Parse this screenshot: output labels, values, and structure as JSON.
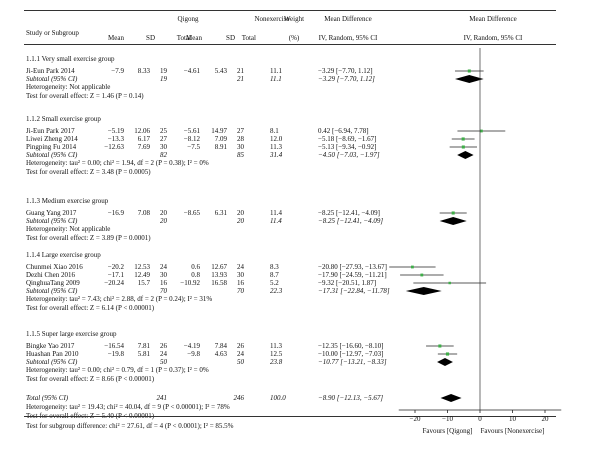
{
  "header": {
    "study": "Study or Subgroup",
    "qigong": "Qigong",
    "nonexercise": "Nonexercise",
    "weight": "Weight",
    "weight_unit": "(%)",
    "md_title": "Mean Difference",
    "md_method": "IV, Random, 95% CI",
    "plot_title": "Mean Difference",
    "plot_method": "IV, Random, 95% CI",
    "mean": "Mean",
    "sd": "SD",
    "total": "Total"
  },
  "groups": [
    {
      "title": "1.1.1 Very small exercise group",
      "studies": [
        {
          "name": "Ji-Eun Park 2014",
          "q_mean": "−7.9",
          "q_sd": "8.33",
          "q_n": "19",
          "n_mean": "−4.61",
          "n_sd": "5.43",
          "n_n": "21",
          "weight": "11.1",
          "ci": "−3.29 [−7.70, 1.12]",
          "md": -3.29,
          "lo": -7.7,
          "hi": 1.12
        }
      ],
      "subtotal": {
        "label": "Subtotal (95% CI)",
        "q_n": "19",
        "n_n": "21",
        "weight": "11.1",
        "ci": "−3.29 [−7.70, 1.12]",
        "md": -3.29,
        "lo": -7.7,
        "hi": 1.12
      },
      "heterogeneity": "Heterogeneity: Not applicable",
      "overall": "Test for overall effect: Z = 1.46 (P = 0.14)"
    },
    {
      "title": "1.1.2 Small exercise group",
      "studies": [
        {
          "name": "Ji-Eun Park 2017",
          "q_mean": "−5.19",
          "q_sd": "12.06",
          "q_n": "25",
          "n_mean": "−5.61",
          "n_sd": "14.97",
          "n_n": "27",
          "weight": "8.1",
          "ci": "0.42 [−6.94, 7.78]",
          "md": 0.42,
          "lo": -6.94,
          "hi": 7.78
        },
        {
          "name": "Liwei Zheng 2014",
          "q_mean": "−13.3",
          "q_sd": "6.17",
          "q_n": "27",
          "n_mean": "−8.12",
          "n_sd": "7.09",
          "n_n": "28",
          "weight": "12.0",
          "ci": "−5.18 [−8.69, −1.67]",
          "md": -5.18,
          "lo": -8.69,
          "hi": -1.67
        },
        {
          "name": "Pingping Fu 2014",
          "q_mean": "−12.63",
          "q_sd": "7.69",
          "q_n": "30",
          "n_mean": "−7.5",
          "n_sd": "8.91",
          "n_n": "30",
          "weight": "11.3",
          "ci": "−5.13 [−9.34, −0.92]",
          "md": -5.13,
          "lo": -9.34,
          "hi": -0.92
        }
      ],
      "subtotal": {
        "label": "Subtotal (95% CI)",
        "q_n": "82",
        "n_n": "85",
        "weight": "31.4",
        "ci": "−4.50 [−7.03, −1.97]",
        "md": -4.5,
        "lo": -7.03,
        "hi": -1.97
      },
      "heterogeneity": "Heterogeneity: tau² = 0.00; chi² = 1.94, df = 2 (P = 0.38); I² = 0%",
      "overall": "Test for overall effect: Z = 3.48 (P = 0.0005)"
    },
    {
      "title": "1.1.3 Medium exercise group",
      "studies": [
        {
          "name": "Guang Yang 2017",
          "q_mean": "−16.9",
          "q_sd": "7.08",
          "q_n": "20",
          "n_mean": "−8.65",
          "n_sd": "6.31",
          "n_n": "20",
          "weight": "11.4",
          "ci": "−8.25 [−12.41, −4.09]",
          "md": -8.25,
          "lo": -12.41,
          "hi": -4.09
        }
      ],
      "subtotal": {
        "label": "Subtotal (95% CI)",
        "q_n": "20",
        "n_n": "20",
        "weight": "11.4",
        "ci": "−8.25 [−12.41, −4.09]",
        "md": -8.25,
        "lo": -12.41,
        "hi": -4.09
      },
      "heterogeneity": "Heterogeneity: Not applicable",
      "overall": "Test for overall effect: Z = 3.89 (P = 0.0001)"
    },
    {
      "title": "1.1.4 Large exercise group",
      "studies": [
        {
          "name": "Chunmei Xiao 2016",
          "q_mean": "−20.2",
          "q_sd": "12.53",
          "q_n": "24",
          "n_mean": "0.6",
          "n_sd": "12.67",
          "n_n": "24",
          "weight": "8.3",
          "ci": "−20.80 [−27.93, −13.67]",
          "md": -20.8,
          "lo": -27.93,
          "hi": -13.67
        },
        {
          "name": "Dezhi Chen 2016",
          "q_mean": "−17.1",
          "q_sd": "12.49",
          "q_n": "30",
          "n_mean": "0.8",
          "n_sd": "13.93",
          "n_n": "30",
          "weight": "8.7",
          "ci": "−17.90 [−24.59, −11.21]",
          "md": -17.9,
          "lo": -24.59,
          "hi": -11.21
        },
        {
          "name": "QinghuaTang 2009",
          "q_mean": "−20.24",
          "q_sd": "15.7",
          "q_n": "16",
          "n_mean": "−10.92",
          "n_sd": "16.58",
          "n_n": "16",
          "weight": "5.2",
          "ci": "−9.32 [−20.51, 1.87]",
          "md": -9.32,
          "lo": -20.51,
          "hi": 1.87
        }
      ],
      "subtotal": {
        "label": "Subtotal (95% CI)",
        "q_n": "70",
        "n_n": "70",
        "weight": "22.3",
        "ci": "−17.31 [−22.84, −11.78]",
        "md": -17.31,
        "lo": -22.84,
        "hi": -11.78
      },
      "heterogeneity": "Heterogeneity: tau² = 7.43; chi² = 2.88, df = 2 (P = 0.24); I² = 31%",
      "overall": "Test for overall effect: Z = 6.14 (P < 0.00001)"
    },
    {
      "title": "1.1.5 Super large exercise group",
      "studies": [
        {
          "name": "Bingke Yao 2017",
          "q_mean": "−16.54",
          "q_sd": "7.81",
          "q_n": "26",
          "n_mean": "−4.19",
          "n_sd": "7.84",
          "n_n": "26",
          "weight": "11.3",
          "ci": "−12.35 [−16.60, −8.10]",
          "md": -12.35,
          "lo": -16.6,
          "hi": -8.1
        },
        {
          "name": "Huashan Pan 2010",
          "q_mean": "−19.8",
          "q_sd": "5.81",
          "q_n": "24",
          "n_mean": "−9.8",
          "n_sd": "4.63",
          "n_n": "24",
          "weight": "12.5",
          "ci": "−10.00 [−12.97, −7.03]",
          "md": -10.0,
          "lo": -12.97,
          "hi": -7.03
        }
      ],
      "subtotal": {
        "label": "Subtotal (95% CI)",
        "q_n": "50",
        "n_n": "50",
        "weight": "23.8",
        "ci": "−10.77 [−13.21, −8.33]",
        "md": -10.77,
        "lo": -13.21,
        "hi": -8.33
      },
      "heterogeneity": "Heterogeneity: tau² = 0.00; chi² = 0.79, df = 1 (P = 0.37); I² = 0%",
      "overall": "Test for overall effect: Z = 8.66 (P < 0.00001)"
    }
  ],
  "total": {
    "label": "Total (95% CI)",
    "q_n": "241",
    "n_n": "246",
    "weight": "100.0",
    "ci": "−8.90 [−12.13, −5.67]",
    "md": -8.9,
    "lo": -12.13,
    "hi": -5.67,
    "heterogeneity": "Heterogeneity: tau² = 19.43; chi² = 40.04, df = 9 (P < 0.00001); I² = 78%",
    "overall": "Test for overall effect: Z = 5.40 (P < 0.00001)",
    "subgroup": "Test for subgroup difference: chi² = 27.61, df = 4 (P < 0.0001); I² = 85.5%"
  },
  "axis": {
    "ticks": [
      "−20",
      "−10",
      "0",
      "10",
      "20"
    ],
    "tick_values": [
      -20,
      -10,
      0,
      10,
      20
    ],
    "xlim": [
      -25,
      25
    ],
    "favours_left": "Favours [Qigong]",
    "favours_right": "Favours [Nonexercise]"
  },
  "colors": {
    "point": "#3fae49",
    "line": "#222222"
  }
}
